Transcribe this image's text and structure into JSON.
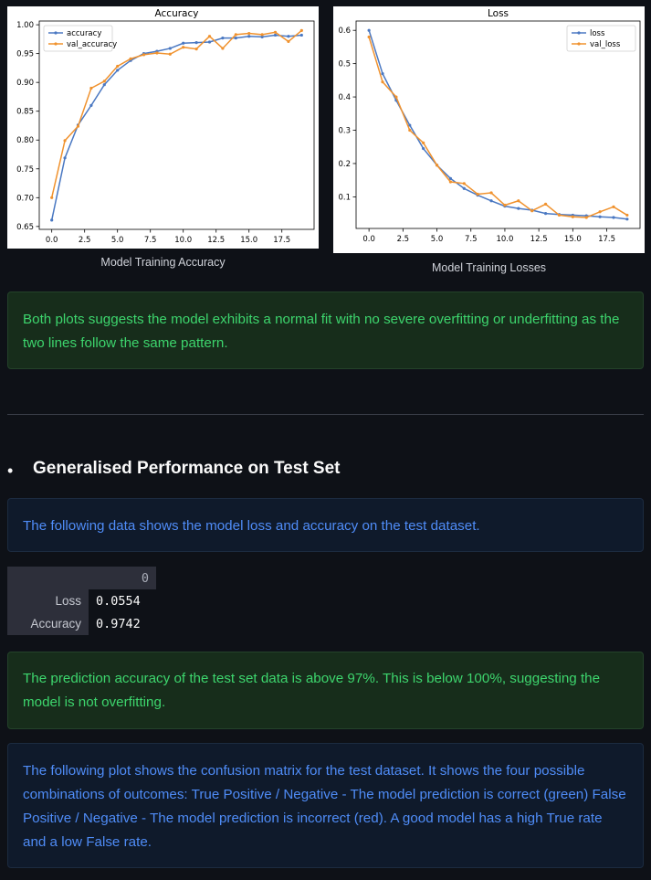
{
  "chart_data": [
    {
      "type": "line",
      "title": "Accuracy",
      "xlabel": "",
      "ylabel": "",
      "x": [
        0,
        1,
        2,
        3,
        4,
        5,
        6,
        7,
        8,
        9,
        10,
        11,
        12,
        13,
        14,
        15,
        16,
        17,
        18,
        19
      ],
      "series": [
        {
          "name": "accuracy",
          "color": "#4a78c2",
          "values": [
            0.661,
            0.769,
            0.826,
            0.86,
            0.896,
            0.921,
            0.938,
            0.95,
            0.954,
            0.959,
            0.968,
            0.969,
            0.97,
            0.977,
            0.977,
            0.98,
            0.979,
            0.982,
            0.98,
            0.982
          ]
        },
        {
          "name": "val_accuracy",
          "color": "#f0922e",
          "values": [
            0.7,
            0.799,
            0.824,
            0.89,
            0.902,
            0.928,
            0.941,
            0.948,
            0.951,
            0.949,
            0.961,
            0.958,
            0.98,
            0.959,
            0.983,
            0.985,
            0.983,
            0.987,
            0.971,
            0.99
          ]
        }
      ],
      "xlim": [
        -0.95,
        19.95
      ],
      "ylim": [
        0.645,
        1.0065
      ],
      "xticks": [
        0,
        2.5,
        5,
        7.5,
        10,
        12.5,
        15,
        17.5
      ],
      "xtick_labels": [
        "0.0",
        "2.5",
        "5.0",
        "7.5",
        "10.0",
        "12.5",
        "15.0",
        "17.5"
      ],
      "yticks": [
        0.65,
        0.7,
        0.75,
        0.8,
        0.85,
        0.9,
        0.95,
        1.0
      ],
      "ytick_labels": [
        "0.65",
        "0.70",
        "0.75",
        "0.80",
        "0.85",
        "0.90",
        "0.95",
        "1.00"
      ],
      "grid": false,
      "legend": "top-left"
    },
    {
      "type": "line",
      "title": "Loss",
      "xlabel": "",
      "ylabel": "",
      "x": [
        0,
        1,
        2,
        3,
        4,
        5,
        6,
        7,
        8,
        9,
        10,
        11,
        12,
        13,
        14,
        15,
        16,
        17,
        18,
        19
      ],
      "series": [
        {
          "name": "loss",
          "color": "#4a78c2",
          "values": [
            0.6,
            0.47,
            0.39,
            0.315,
            0.245,
            0.195,
            0.155,
            0.125,
            0.105,
            0.088,
            0.072,
            0.065,
            0.06,
            0.05,
            0.047,
            0.045,
            0.043,
            0.04,
            0.038,
            0.033
          ]
        },
        {
          "name": "val_loss",
          "color": "#f0922e",
          "values": [
            0.58,
            0.445,
            0.4,
            0.3,
            0.262,
            0.195,
            0.145,
            0.14,
            0.108,
            0.112,
            0.075,
            0.088,
            0.058,
            0.078,
            0.045,
            0.04,
            0.038,
            0.055,
            0.07,
            0.045
          ]
        }
      ],
      "xlim": [
        -0.95,
        19.95
      ],
      "ylim": [
        0.005,
        0.628
      ],
      "xticks": [
        0,
        2.5,
        5,
        7.5,
        10,
        12.5,
        15,
        17.5
      ],
      "xtick_labels": [
        "0.0",
        "2.5",
        "5.0",
        "7.5",
        "10.0",
        "12.5",
        "15.0",
        "17.5"
      ],
      "yticks": [
        0.1,
        0.2,
        0.3,
        0.4,
        0.5,
        0.6
      ],
      "ytick_labels": [
        "0.1",
        "0.2",
        "0.3",
        "0.4",
        "0.5",
        "0.6"
      ],
      "grid": false,
      "legend": "top-right"
    }
  ],
  "captions": {
    "accuracy": "Model Training Accuracy",
    "loss": "Model Training Losses"
  },
  "callouts": {
    "fit": "Both plots suggests the model exhibits a normal fit with no severe overfitting or underfitting as the two lines follow the same pattern.",
    "test_info": "The following data shows the model loss and accuracy on the test dataset.",
    "accuracy": "The prediction accuracy of the test set data is above 97%. This is below 100%, suggesting the model is not overfitting.",
    "confusion": "The following plot shows the confusion matrix for the test dataset. It shows the four possible combinations of outcomes: True Positive / Negative - The model prediction is correct (green) False Positive / Negative - The model prediction is incorrect (red). A good model has a high True rate and a low False rate."
  },
  "section": {
    "bullet": "•",
    "heading": "Generalised Performance on Test Set"
  },
  "metrics_table": {
    "column_header": "0",
    "rows": [
      {
        "label": "Loss",
        "value": "0.0554"
      },
      {
        "label": "Accuracy",
        "value": "0.9742"
      }
    ]
  }
}
